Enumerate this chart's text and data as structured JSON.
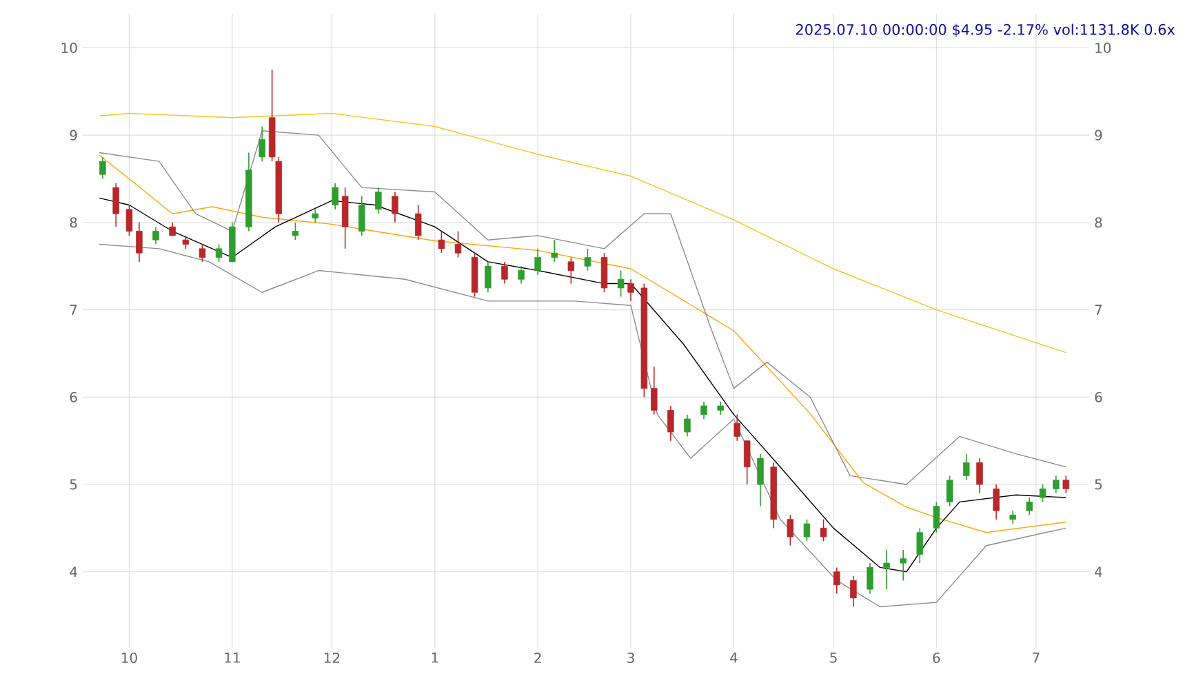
{
  "chart_data": {
    "type": "candlestick",
    "title": "2025.07.10 00:00:00 $4.95 -2.17% vol:1131.8K 0.6x",
    "x": [
      "2024-09-23",
      "2024-09-27",
      "2024-10-01",
      "2024-10-04",
      "2024-10-09",
      "2024-10-14",
      "2024-10-18",
      "2024-10-23",
      "2024-10-28",
      "2024-11-01",
      "2024-11-06",
      "2024-11-10",
      "2024-11-13",
      "2024-11-15",
      "2024-11-20",
      "2024-11-26",
      "2024-12-02",
      "2024-12-05",
      "2024-12-10",
      "2024-12-15",
      "2024-12-20",
      "2024-12-27",
      "2025-01-03",
      "2025-01-08",
      "2025-01-13",
      "2025-01-17",
      "2025-01-22",
      "2025-01-27",
      "2025-02-01",
      "2025-02-06",
      "2025-02-11",
      "2025-02-16",
      "2025-02-21",
      "2025-02-26",
      "2025-03-01",
      "2025-03-05",
      "2025-03-08",
      "2025-03-13",
      "2025-03-18",
      "2025-03-23",
      "2025-03-28",
      "2025-04-02",
      "2025-04-05",
      "2025-04-09",
      "2025-04-13",
      "2025-04-18",
      "2025-04-23",
      "2025-04-28",
      "2025-05-02",
      "2025-05-07",
      "2025-05-12",
      "2025-05-17",
      "2025-05-22",
      "2025-05-27",
      "2025-06-01",
      "2025-06-05",
      "2025-06-10",
      "2025-06-14",
      "2025-06-19",
      "2025-06-24",
      "2025-06-29",
      "2025-07-03",
      "2025-07-07",
      "2025-07-10"
    ],
    "ohlc": [
      [
        8.55,
        8.75,
        8.5,
        8.7
      ],
      [
        8.4,
        8.45,
        7.95,
        8.1
      ],
      [
        8.15,
        8.2,
        7.85,
        7.9
      ],
      [
        7.9,
        8.0,
        7.55,
        7.65
      ],
      [
        7.8,
        7.95,
        7.75,
        7.9
      ],
      [
        7.95,
        8.0,
        7.85,
        7.85
      ],
      [
        7.8,
        7.85,
        7.7,
        7.75
      ],
      [
        7.7,
        7.75,
        7.55,
        7.6
      ],
      [
        7.6,
        7.75,
        7.55,
        7.7
      ],
      [
        7.55,
        8.0,
        7.55,
        7.95
      ],
      [
        7.95,
        8.8,
        7.9,
        8.6
      ],
      [
        8.75,
        9.1,
        8.7,
        8.95
      ],
      [
        9.2,
        9.75,
        8.7,
        8.75
      ],
      [
        8.7,
        8.75,
        8.0,
        8.1
      ],
      [
        7.85,
        8.0,
        7.8,
        7.9
      ],
      [
        8.05,
        8.15,
        8.0,
        8.1
      ],
      [
        8.2,
        8.45,
        8.15,
        8.4
      ],
      [
        8.3,
        8.4,
        7.7,
        7.95
      ],
      [
        7.9,
        8.3,
        7.85,
        8.2
      ],
      [
        8.15,
        8.4,
        8.1,
        8.35
      ],
      [
        8.3,
        8.35,
        8.0,
        8.1
      ],
      [
        8.1,
        8.2,
        7.8,
        7.85
      ],
      [
        7.8,
        7.9,
        7.65,
        7.7
      ],
      [
        7.75,
        7.9,
        7.6,
        7.65
      ],
      [
        7.6,
        7.65,
        7.15,
        7.2
      ],
      [
        7.25,
        7.55,
        7.2,
        7.5
      ],
      [
        7.5,
        7.55,
        7.3,
        7.35
      ],
      [
        7.35,
        7.5,
        7.3,
        7.45
      ],
      [
        7.45,
        7.7,
        7.4,
        7.6
      ],
      [
        7.6,
        7.8,
        7.55,
        7.65
      ],
      [
        7.55,
        7.6,
        7.3,
        7.45
      ],
      [
        7.5,
        7.7,
        7.45,
        7.6
      ],
      [
        7.6,
        7.65,
        7.2,
        7.25
      ],
      [
        7.25,
        7.45,
        7.15,
        7.35
      ],
      [
        7.3,
        7.35,
        7.1,
        7.2
      ],
      [
        7.25,
        7.3,
        6.0,
        6.1
      ],
      [
        6.1,
        6.35,
        5.8,
        5.85
      ],
      [
        5.85,
        5.9,
        5.5,
        5.6
      ],
      [
        5.6,
        5.8,
        5.55,
        5.75
      ],
      [
        5.8,
        5.95,
        5.75,
        5.9
      ],
      [
        5.85,
        5.95,
        5.8,
        5.9
      ],
      [
        5.7,
        5.8,
        5.5,
        5.55
      ],
      [
        5.5,
        5.5,
        5.0,
        5.2
      ],
      [
        5.0,
        5.35,
        4.75,
        5.3
      ],
      [
        5.2,
        5.25,
        4.5,
        4.6
      ],
      [
        4.6,
        4.65,
        4.3,
        4.4
      ],
      [
        4.4,
        4.6,
        4.35,
        4.55
      ],
      [
        4.5,
        4.6,
        4.35,
        4.4
      ],
      [
        4.0,
        4.05,
        3.75,
        3.85
      ],
      [
        3.9,
        3.95,
        3.6,
        3.7
      ],
      [
        3.8,
        4.1,
        3.75,
        4.05
      ],
      [
        4.05,
        4.25,
        3.8,
        4.1
      ],
      [
        4.1,
        4.25,
        3.9,
        4.15
      ],
      [
        4.2,
        4.5,
        4.1,
        4.45
      ],
      [
        4.5,
        4.8,
        4.45,
        4.75
      ],
      [
        4.8,
        5.1,
        4.75,
        5.05
      ],
      [
        5.1,
        5.35,
        5.05,
        5.25
      ],
      [
        5.25,
        5.3,
        4.9,
        5.0
      ],
      [
        4.95,
        5.0,
        4.6,
        4.7
      ],
      [
        4.6,
        4.7,
        4.55,
        4.65
      ],
      [
        4.7,
        4.85,
        4.65,
        4.8
      ],
      [
        4.85,
        5.0,
        4.8,
        4.95
      ],
      [
        4.95,
        5.1,
        4.9,
        5.05
      ],
      [
        5.05,
        5.1,
        4.9,
        4.95
      ]
    ],
    "series": [
      {
        "type": "line",
        "color": "#f5c518",
        "x": [
          "2024-09-22",
          "2024-10-01",
          "2024-11-01",
          "2024-12-01",
          "2025-01-01",
          "2025-02-01",
          "2025-03-01",
          "2025-04-01",
          "2025-05-01",
          "2025-06-01",
          "2025-07-10"
        ],
        "values": [
          9.22,
          9.25,
          9.2,
          9.25,
          9.1,
          8.78,
          8.53,
          8.03,
          7.47,
          7.0,
          6.51
        ]
      },
      {
        "type": "line",
        "color": "#ffa500",
        "x": [
          "2024-09-22",
          "2024-10-01",
          "2024-10-14",
          "2024-10-26",
          "2024-11-10",
          "2024-12-01",
          "2025-01-01",
          "2025-02-01",
          "2025-03-01",
          "2025-04-01",
          "2025-04-24",
          "2025-05-10",
          "2025-05-23",
          "2025-06-01",
          "2025-06-16",
          "2025-07-10"
        ],
        "values": [
          8.77,
          8.5,
          8.1,
          8.18,
          8.06,
          7.98,
          7.79,
          7.68,
          7.47,
          6.76,
          5.81,
          5.02,
          4.74,
          4.62,
          4.45,
          4.57
        ]
      },
      {
        "type": "line",
        "color": "#000000",
        "x": [
          "2024-09-22",
          "2024-10-01",
          "2024-10-14",
          "2024-11-01",
          "2024-11-14",
          "2024-12-01",
          "2024-12-14",
          "2025-01-01",
          "2025-01-17",
          "2025-02-01",
          "2025-02-21",
          "2025-03-01",
          "2025-03-17",
          "2025-04-01",
          "2025-04-15",
          "2025-05-01",
          "2025-05-15",
          "2025-05-23",
          "2025-06-01",
          "2025-06-08",
          "2025-06-25",
          "2025-07-10"
        ],
        "values": [
          8.28,
          8.2,
          7.9,
          7.6,
          7.95,
          8.25,
          8.2,
          7.95,
          7.55,
          7.45,
          7.3,
          7.3,
          6.6,
          5.8,
          5.2,
          4.5,
          4.05,
          4.0,
          4.5,
          4.8,
          4.88,
          4.85
        ]
      },
      {
        "type": "line",
        "color": "#8c8c8c",
        "x": [
          "2024-09-22",
          "2024-10-10",
          "2024-10-21",
          "2024-11-01",
          "2024-11-10",
          "2024-11-27",
          "2024-12-10",
          "2025-01-01",
          "2025-01-17",
          "2025-02-01",
          "2025-02-21",
          "2025-03-05",
          "2025-03-13",
          "2025-03-25",
          "2025-04-01",
          "2025-04-11",
          "2025-04-24",
          "2025-05-06",
          "2025-05-23",
          "2025-06-08",
          "2025-06-25",
          "2025-07-10"
        ],
        "values": [
          8.8,
          8.7,
          8.1,
          7.9,
          9.05,
          9.0,
          8.4,
          8.35,
          7.8,
          7.85,
          7.7,
          8.1,
          8.1,
          6.8,
          6.1,
          6.4,
          6.0,
          5.1,
          5.0,
          5.55,
          5.35,
          5.2
        ]
      },
      {
        "type": "line",
        "color": "#8c8c8c",
        "x": [
          "2024-09-22",
          "2024-10-10",
          "2024-10-25",
          "2024-11-10",
          "2024-11-27",
          "2024-12-10",
          "2024-12-23",
          "2025-01-17",
          "2025-02-12",
          "2025-03-01",
          "2025-03-09",
          "2025-03-19",
          "2025-04-01",
          "2025-04-15",
          "2025-05-02",
          "2025-05-15",
          "2025-06-01",
          "2025-06-16",
          "2025-07-10"
        ],
        "values": [
          7.75,
          7.7,
          7.55,
          7.2,
          7.45,
          7.4,
          7.35,
          7.1,
          7.1,
          7.05,
          5.8,
          5.3,
          5.75,
          4.6,
          3.9,
          3.6,
          3.65,
          4.3,
          4.5
        ]
      }
    ],
    "xlim": [
      "2024-09-17",
      "2025-07-17"
    ],
    "xticks": [
      {
        "value": "2024-10-01",
        "label": "10"
      },
      {
        "value": "2024-11-01",
        "label": "11"
      },
      {
        "value": "2024-12-01",
        "label": "12"
      },
      {
        "value": "2025-01-01",
        "label": "1"
      },
      {
        "value": "2025-02-01",
        "label": "2"
      },
      {
        "value": "2025-03-01",
        "label": "3"
      },
      {
        "value": "2025-04-01",
        "label": "4"
      },
      {
        "value": "2025-05-01",
        "label": "5"
      },
      {
        "value": "2025-06-01",
        "label": "6"
      },
      {
        "value": "2025-07-01",
        "label": "7"
      }
    ],
    "ylim": [
      3.13,
      10.39
    ],
    "yticks": [
      4,
      5,
      6,
      7,
      8,
      9,
      10
    ],
    "y2lim": [
      3.13,
      10.39
    ],
    "y2ticks": [
      4,
      5,
      6,
      7,
      8,
      9,
      10
    ],
    "grid": true
  }
}
